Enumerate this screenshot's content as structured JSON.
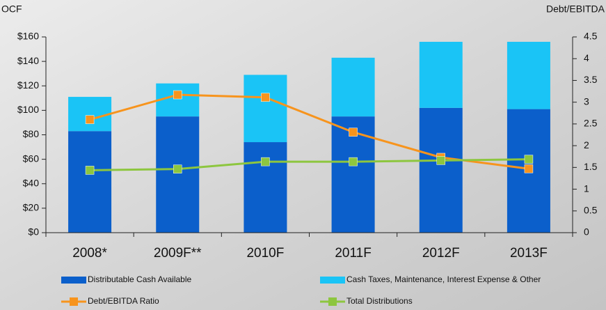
{
  "chart_data": {
    "type": "bar",
    "y_label": "OCF",
    "y2_label": "Debt/EBITDA",
    "categories": [
      "2008*",
      "2009F**",
      "2010F",
      "2011F",
      "2012F",
      "2013F"
    ],
    "series": [
      {
        "name": "Distributable Cash Available",
        "type": "bar",
        "color": "#0b5fcb",
        "values": [
          83,
          95,
          74,
          95,
          102,
          101
        ]
      },
      {
        "name": "Cash Taxes, Maintenance, Interest Expense & Other",
        "type": "bar",
        "color": "#1ac4f6",
        "values": [
          28,
          27,
          55,
          48,
          54,
          55
        ]
      },
      {
        "name": "Debt/EBITDA Ratio",
        "type": "line",
        "axis": "y2",
        "color": "#f7941d",
        "values": [
          2.6,
          3.17,
          3.11,
          2.31,
          1.73,
          1.47
        ]
      },
      {
        "name": "Total Distributions",
        "type": "line",
        "color": "#8dc63f",
        "values": [
          51,
          52,
          58,
          58,
          59,
          60
        ]
      }
    ],
    "ylim": [
      0,
      160
    ],
    "yticks": [
      {
        "value": 0,
        "label": "$0"
      },
      {
        "value": 20,
        "label": "$20"
      },
      {
        "value": 40,
        "label": "$40"
      },
      {
        "value": 60,
        "label": "$60"
      },
      {
        "value": 80,
        "label": "$80"
      },
      {
        "value": 100,
        "label": "$100"
      },
      {
        "value": 120,
        "label": "$120"
      },
      {
        "value": 140,
        "label": "$140"
      },
      {
        "value": 160,
        "label": "$160"
      }
    ],
    "y2lim": [
      0,
      4.5
    ],
    "y2ticks": [
      0,
      0.5,
      1,
      1.5,
      2,
      2.5,
      3,
      3.5,
      4,
      4.5
    ]
  }
}
